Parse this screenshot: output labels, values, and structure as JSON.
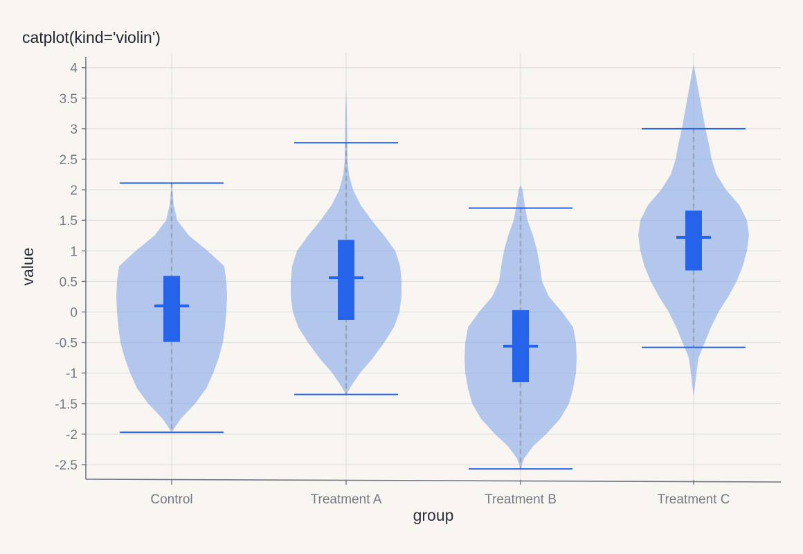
{
  "chart_data": {
    "type": "violin",
    "title": "catplot(kind='violin')",
    "xlabel": "group",
    "ylabel": "value",
    "ylim": [
      -2.75,
      4.2
    ],
    "yticks": [
      -2.5,
      -2,
      -1.5,
      -1,
      -0.5,
      0,
      0.5,
      1,
      1.5,
      2,
      2.5,
      3,
      3.5,
      4
    ],
    "ytick_labels": [
      "-2.5",
      "-2",
      "-1.5",
      "-1",
      "-0.5",
      "0",
      "0.5",
      "1",
      "1.5",
      "2",
      "2.5",
      "3",
      "3.5",
      "4"
    ],
    "grid": true,
    "categories": [
      "Control",
      "Treatment A",
      "Treatment B",
      "Treatment C"
    ],
    "groups": [
      {
        "name": "Control",
        "min": -1.97,
        "q1": -0.49,
        "median": 0.1,
        "q3": 0.59,
        "max": 2.11,
        "violin": [
          [
            -1.97,
            0.0
          ],
          [
            -1.75,
            0.13
          ],
          [
            -1.5,
            0.34
          ],
          [
            -1.25,
            0.5
          ],
          [
            -1.0,
            0.6
          ],
          [
            -0.75,
            0.68
          ],
          [
            -0.5,
            0.74
          ],
          [
            -0.25,
            0.77
          ],
          [
            0.0,
            0.79
          ],
          [
            0.25,
            0.8
          ],
          [
            0.5,
            0.79
          ],
          [
            0.75,
            0.76
          ],
          [
            1.0,
            0.52
          ],
          [
            1.25,
            0.25
          ],
          [
            1.5,
            0.08
          ],
          [
            1.75,
            0.03
          ],
          [
            2.11,
            0.0
          ]
        ]
      },
      {
        "name": "Treatment A",
        "min": -1.35,
        "q1": -0.13,
        "median": 0.56,
        "q3": 1.18,
        "max": 2.77,
        "violin": [
          [
            -1.35,
            0.0
          ],
          [
            -1.2,
            0.08
          ],
          [
            -1.0,
            0.2
          ],
          [
            -0.75,
            0.39
          ],
          [
            -0.5,
            0.55
          ],
          [
            -0.25,
            0.69
          ],
          [
            0.0,
            0.77
          ],
          [
            0.25,
            0.8
          ],
          [
            0.5,
            0.8
          ],
          [
            0.75,
            0.78
          ],
          [
            1.0,
            0.71
          ],
          [
            1.25,
            0.55
          ],
          [
            1.5,
            0.37
          ],
          [
            1.75,
            0.21
          ],
          [
            2.0,
            0.1
          ],
          [
            2.25,
            0.04
          ],
          [
            2.5,
            0.02
          ],
          [
            3.0,
            0.015
          ],
          [
            3.3,
            0.01
          ],
          [
            3.68,
            0.0
          ]
        ]
      },
      {
        "name": "Treatment B",
        "min": -2.57,
        "q1": -1.15,
        "median": -0.56,
        "q3": 0.03,
        "max": 1.7,
        "violin": [
          [
            -2.57,
            0.0
          ],
          [
            -2.4,
            0.05
          ],
          [
            -2.2,
            0.18
          ],
          [
            -2.0,
            0.37
          ],
          [
            -1.75,
            0.57
          ],
          [
            -1.5,
            0.7
          ],
          [
            -1.25,
            0.76
          ],
          [
            -1.0,
            0.8
          ],
          [
            -0.75,
            0.81
          ],
          [
            -0.5,
            0.8
          ],
          [
            -0.25,
            0.76
          ],
          [
            0.0,
            0.6
          ],
          [
            0.25,
            0.41
          ],
          [
            0.5,
            0.31
          ],
          [
            0.75,
            0.28
          ],
          [
            1.0,
            0.24
          ],
          [
            1.25,
            0.18
          ],
          [
            1.5,
            0.1
          ],
          [
            1.75,
            0.06
          ],
          [
            2.0,
            0.03
          ],
          [
            2.08,
            0.0
          ]
        ]
      },
      {
        "name": "Treatment C",
        "min": -0.58,
        "q1": 0.68,
        "median": 1.22,
        "q3": 1.66,
        "max": 3.0,
        "violin": [
          [
            -1.38,
            0.0
          ],
          [
            -1.2,
            0.02
          ],
          [
            -1.0,
            0.04
          ],
          [
            -0.75,
            0.07
          ],
          [
            -0.5,
            0.16
          ],
          [
            -0.25,
            0.25
          ],
          [
            0.0,
            0.36
          ],
          [
            0.25,
            0.5
          ],
          [
            0.5,
            0.62
          ],
          [
            0.75,
            0.71
          ],
          [
            1.0,
            0.77
          ],
          [
            1.25,
            0.8
          ],
          [
            1.5,
            0.77
          ],
          [
            1.75,
            0.66
          ],
          [
            2.0,
            0.47
          ],
          [
            2.25,
            0.33
          ],
          [
            2.5,
            0.26
          ],
          [
            2.75,
            0.22
          ],
          [
            3.0,
            0.17
          ],
          [
            3.25,
            0.13
          ],
          [
            3.5,
            0.09
          ],
          [
            3.75,
            0.05
          ],
          [
            4.06,
            0.0
          ]
        ]
      }
    ]
  }
}
